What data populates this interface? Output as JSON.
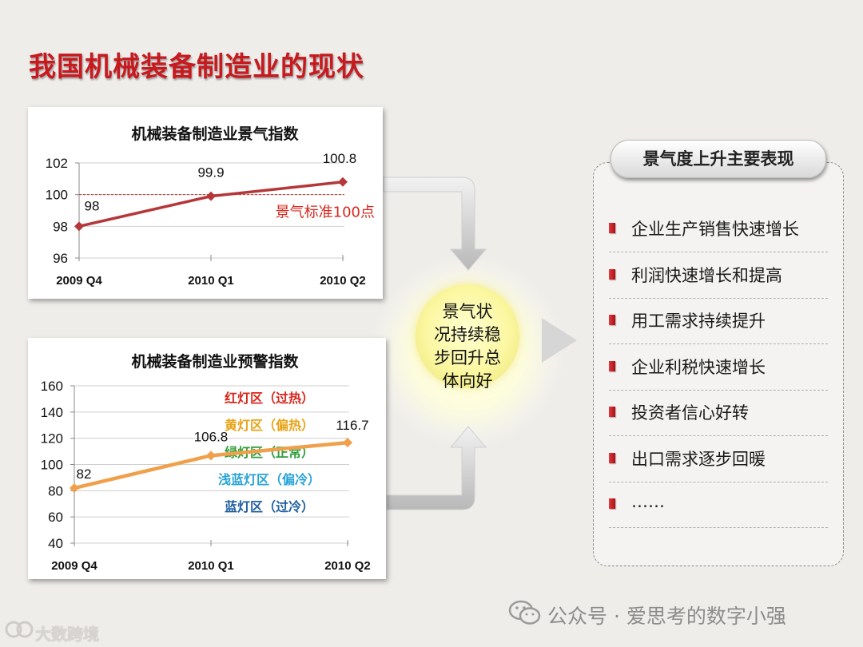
{
  "page_title": "我国机械装备制造业的现状",
  "chart_data": [
    {
      "type": "line",
      "title": "机械装备制造业景气指数",
      "categories": [
        "2009 Q4",
        "2010 Q1",
        "2010 Q2"
      ],
      "series": [
        {
          "values": [
            98,
            99.9,
            100.8
          ]
        }
      ],
      "data_labels": [
        "98",
        "99.9",
        "100.8"
      ],
      "ylim": [
        96,
        102
      ],
      "yticks": [
        "96",
        "98",
        "100",
        "102"
      ],
      "reference_line": {
        "value": 100,
        "label": "景气标准100点"
      },
      "grid": true,
      "line_color": "#b5373a"
    },
    {
      "type": "line",
      "title": "机械装备制造业预警指数",
      "categories": [
        "2009 Q4",
        "2010 Q1",
        "2010 Q2"
      ],
      "series": [
        {
          "values": [
            82,
            106.8,
            116.7
          ]
        }
      ],
      "data_labels": [
        "82",
        "106.8",
        "116.7"
      ],
      "ylim": [
        40,
        160
      ],
      "yticks": [
        "40",
        "60",
        "80",
        "100",
        "120",
        "140",
        "160"
      ],
      "zones": [
        {
          "label": "红灯区（过热）",
          "color": "#d9261c"
        },
        {
          "label": "黄灯区（偏热）",
          "color": "#e8a317"
        },
        {
          "label": "绿灯区（正常）",
          "color": "#2e9e3a"
        },
        {
          "label": "浅蓝灯区（偏冷）",
          "color": "#27a3d8"
        },
        {
          "label": "蓝灯区（过冷）",
          "color": "#1f5f9e"
        }
      ],
      "grid": true,
      "line_color": "#f0a04b"
    }
  ],
  "center": {
    "lines": [
      "景气状",
      "况持续稳",
      "步回升总",
      "体向好"
    ]
  },
  "side_panel": {
    "header": "景气度上升主要表现",
    "items": [
      "企业生产销售快速增长",
      "利润快速增长和提高",
      "用工需求持续提升",
      "企业利税快速增长",
      "投资者信心好转",
      "出口需求逐步回暖",
      "……"
    ]
  },
  "watermark": {
    "wechat": "公众号 · 爱思考的数字小强",
    "corner": "大数跨境"
  }
}
